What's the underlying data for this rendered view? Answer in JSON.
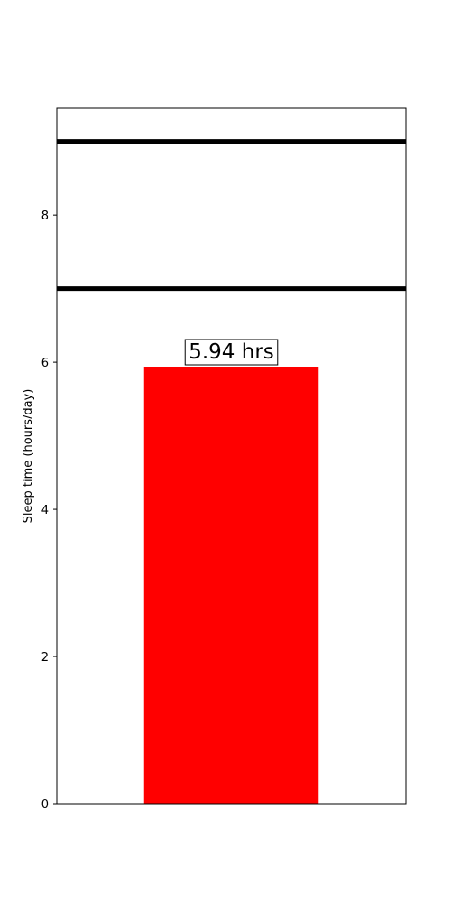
{
  "chart_data": {
    "type": "bar",
    "title": "",
    "xlabel": "",
    "ylabel": "Sleep time (hours/day)",
    "ylim": [
      0,
      9.45
    ],
    "yticks": [
      0,
      2,
      4,
      6,
      8
    ],
    "grid": false,
    "categories": [
      ""
    ],
    "values": [
      5.94
    ],
    "bar_color": "#ff0000",
    "data_labels": [
      "5.94 hrs"
    ],
    "reference_lines": [
      {
        "y": 7,
        "color": "#000000"
      },
      {
        "y": 9,
        "color": "#000000"
      }
    ]
  }
}
